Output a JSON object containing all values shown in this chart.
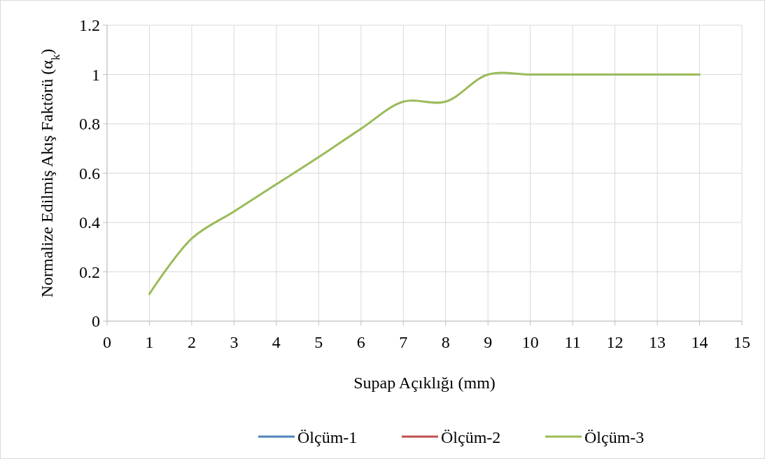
{
  "chart_data": {
    "type": "line",
    "xlabel": "Supap Açıklığı (mm)",
    "ylabel": "Normalize Edilmiş Akış Faktörü (α$_{k}$)",
    "x": [
      1,
      2,
      3,
      4,
      5,
      6,
      7,
      8,
      9,
      10,
      11,
      12,
      13,
      14
    ],
    "xlim": [
      0,
      15
    ],
    "xticks": [
      0,
      1,
      2,
      3,
      4,
      5,
      6,
      7,
      8,
      9,
      10,
      11,
      12,
      13,
      14,
      15
    ],
    "ylim": [
      0,
      1.2
    ],
    "yticks": [
      0,
      0.2,
      0.4,
      0.6,
      0.8,
      1,
      1.2
    ],
    "grid": true,
    "legend": "bottom",
    "marker": "none",
    "line_style": "solid",
    "series": [
      {
        "name": "Ölçüm-1",
        "color": "#4f81bd",
        "values": [
          null,
          null,
          null,
          null,
          null,
          null,
          null,
          null,
          null,
          null,
          null,
          null,
          null,
          null
        ]
      },
      {
        "name": "Ölçüm-2",
        "color": "#c0504d",
        "values": [
          null,
          null,
          null,
          null,
          null,
          null,
          null,
          null,
          null,
          null,
          null,
          null,
          null,
          null
        ]
      },
      {
        "name": "Ölçüm-3",
        "color": "#9bbb59",
        "values": [
          0.11,
          0.335,
          0.445,
          0.555,
          0.665,
          0.78,
          0.89,
          0.89,
          1.0,
          1.0,
          1.0,
          1.0,
          1.0,
          1.0
        ]
      }
    ]
  }
}
